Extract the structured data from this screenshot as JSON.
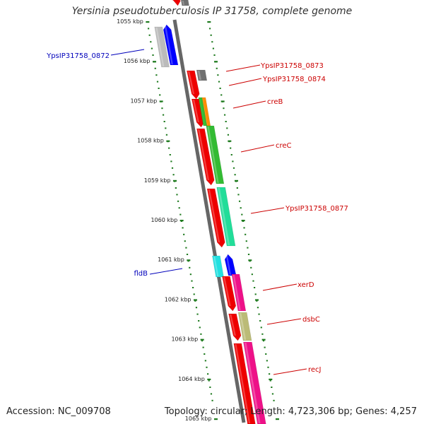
{
  "title": "Yersinia pseudotuberculosis IP 31758, complete genome",
  "footer": {
    "accession": "Accession: NC_009708",
    "stats": "Topology: circular; Length: 4,723,306 bp; Genes: 4,257"
  },
  "colors": {
    "axis": "#888888",
    "ticks": "#1e7a1e",
    "forward_label": "#cc0000",
    "reverse_label": "#0000bb"
  },
  "kbp_labels": [
    {
      "kbp": 1055,
      "text": "1055 kbp"
    },
    {
      "kbp": 1056,
      "text": "1056 kbp"
    },
    {
      "kbp": 1057,
      "text": "1057 kbp"
    },
    {
      "kbp": 1058,
      "text": "1058 kbp"
    },
    {
      "kbp": 1059,
      "text": "1059 kbp"
    },
    {
      "kbp": 1060,
      "text": "1060 kbp"
    },
    {
      "kbp": 1061,
      "text": "1061 kbp"
    },
    {
      "kbp": 1062,
      "text": "1062 kbp"
    },
    {
      "kbp": 1063,
      "text": "1063 kbp"
    },
    {
      "kbp": 1064,
      "text": "1064 kbp"
    },
    {
      "kbp": 1065,
      "text": "1065 kbp"
    }
  ],
  "genes": [
    {
      "label": "YpsIP31758_0872",
      "strand": "reverse",
      "color": "#0000ff"
    },
    {
      "label": "YpsIP31758_0873",
      "strand": "forward",
      "color": "#707070"
    },
    {
      "label": "YpsIP31758_0874",
      "strand": "forward",
      "color": "#ee0000"
    },
    {
      "label": "creB",
      "strand": "forward",
      "color": "#ff8c00"
    },
    {
      "label": "creC",
      "strand": "forward",
      "color": "#33bb33"
    },
    {
      "label": "YpsIP31758_0877",
      "strand": "forward",
      "color": "#22dd99"
    },
    {
      "label": "fldB",
      "strand": "reverse",
      "color": "#22e0e0"
    },
    {
      "label": "xerD",
      "strand": "forward",
      "color": "#ee1188"
    },
    {
      "label": "dsbC",
      "strand": "forward",
      "color": "#bbbb77"
    },
    {
      "label": "recJ",
      "strand": "forward",
      "color": "#ee1188"
    }
  ]
}
